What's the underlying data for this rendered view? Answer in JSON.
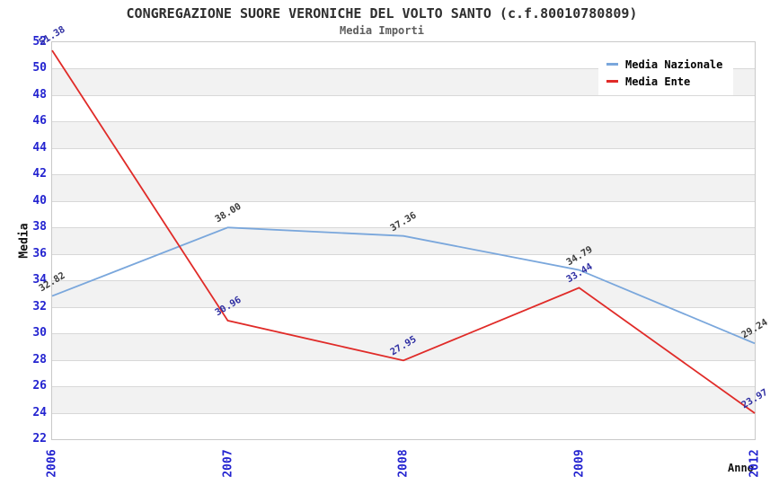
{
  "title": "CONGREGAZIONE SUORE VERONICHE DEL VOLTO SANTO (c.f.80010780809)",
  "subtitle": "Media Importi",
  "chart_data": {
    "type": "line",
    "title": "CONGREGAZIONE SUORE VERONICHE DEL VOLTO SANTO (c.f.80010780809)",
    "subtitle": "Media Importi",
    "xlabel": "Anno",
    "ylabel": "Media",
    "categories": [
      "2006",
      "2007",
      "2008",
      "2009",
      "2012"
    ],
    "series": [
      {
        "name": "Media Nazionale",
        "color": "#7aa7dc",
        "label_color": "#3c3c3c",
        "values": [
          32.82,
          38.0,
          37.36,
          34.79,
          29.24
        ]
      },
      {
        "name": "Media Ente",
        "color": "#e02b28",
        "label_color": "#2e2ea2",
        "values": [
          51.38,
          30.96,
          27.95,
          33.44,
          23.97
        ]
      }
    ],
    "ylim": [
      22,
      52
    ],
    "ytick_step": 2,
    "grid": true,
    "legend_position": "top-right",
    "tick_label_color": "#2424d0",
    "band_colors": [
      "#ffffff",
      "#f2f2f2"
    ],
    "gridline_color": "#d8d8d8",
    "plot_border_color": "#c9c9c9"
  }
}
